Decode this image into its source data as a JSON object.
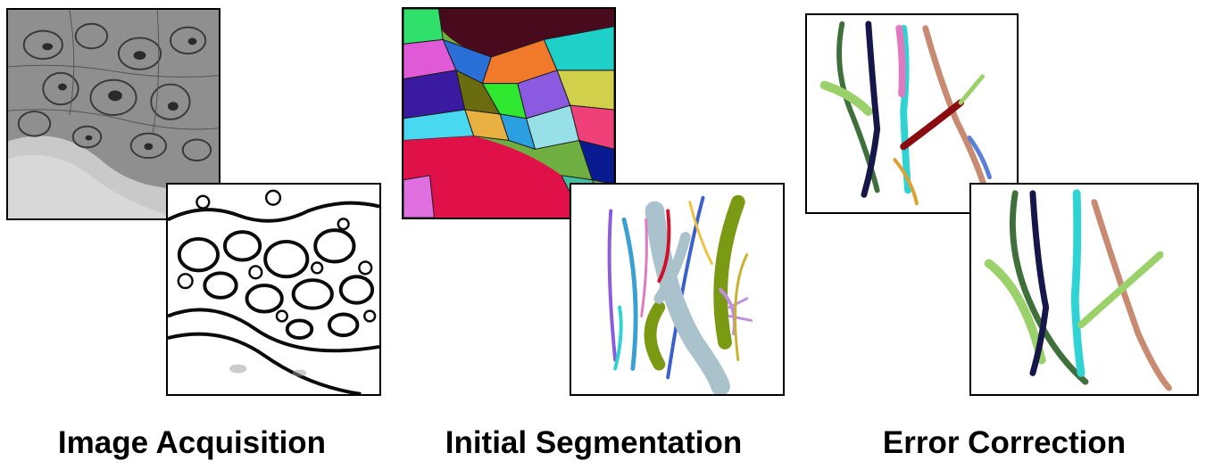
{
  "stages": [
    {
      "caption": "Image Acquisition"
    },
    {
      "caption": "Initial Segmentation"
    },
    {
      "caption": "Error Correction"
    }
  ],
  "colors": {
    "em_background": "#8f8f8f",
    "membrane": "#0a0a0a",
    "seg_dark": "#4a0a1e",
    "seg_red": "#e01048",
    "neurite_lightblue": "#a9c2cc",
    "neurite_olive": "#7b9a14",
    "neurite_darkgreen": "#3f6f3a",
    "neurite_lightgreen": "#9bd16a",
    "neurite_navy": "#16164a",
    "neurite_cyan": "#2fd3d3",
    "neurite_pink": "#e07ac0",
    "neurite_salmon": "#c98a72",
    "neurite_darkred": "#8a0c10",
    "neurite_blue": "#5a7fd8"
  }
}
